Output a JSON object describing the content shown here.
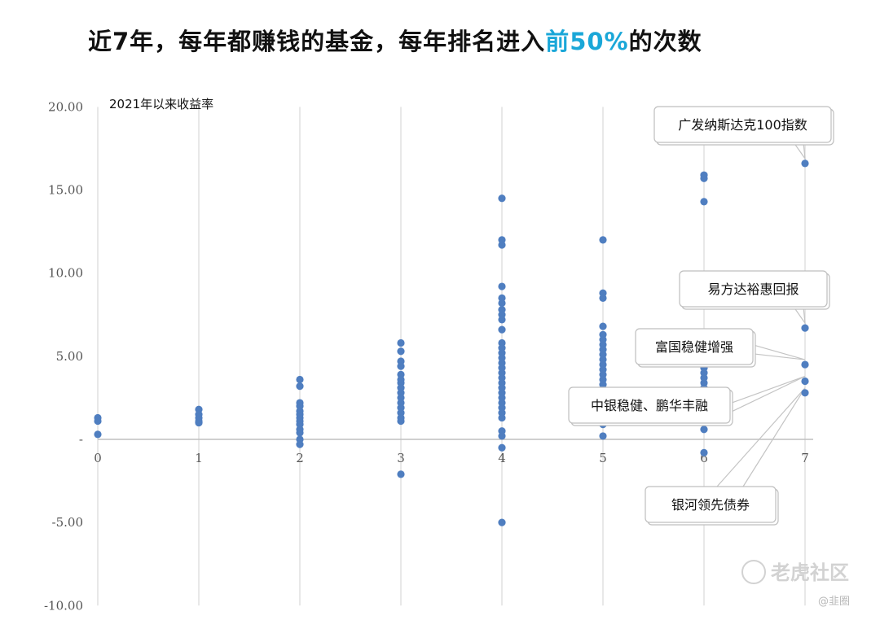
{
  "title": {
    "before": "近7年，每年都赚钱的基金，每年排名进入",
    "highlight": "前50%",
    "after": "的次数"
  },
  "colors": {
    "point": "#4f7ec0",
    "highlight": "#1aa7d8",
    "grid": "#d9d9d9"
  },
  "watermark": {
    "text": "老虎社区",
    "handle": "@韭圈",
    "icon": "tiger-logo-icon"
  },
  "chart_data": {
    "type": "scatter",
    "title": "",
    "xlabel": "",
    "ylabel": "2021年以来收益率",
    "xlim": [
      0,
      7
    ],
    "ylim": [
      -10,
      20
    ],
    "x_ticks": [
      0,
      1,
      2,
      3,
      4,
      5,
      6,
      7
    ],
    "y_ticks": [
      {
        "value": 20,
        "label": "20.00"
      },
      {
        "value": 15,
        "label": "15.00"
      },
      {
        "value": 10,
        "label": "10.00"
      },
      {
        "value": 5,
        "label": "5.00"
      },
      {
        "value": 0,
        "label": "-"
      },
      {
        "value": -5,
        "label": "-5.00"
      },
      {
        "value": -10,
        "label": "-10.00"
      }
    ],
    "grid": "vertical",
    "series": [
      {
        "name": "",
        "points": [
          [
            0,
            1.3
          ],
          [
            0,
            1.1
          ],
          [
            0,
            0.3
          ],
          [
            1,
            1.8
          ],
          [
            1,
            1.5
          ],
          [
            1,
            1.3
          ],
          [
            1,
            1.1
          ],
          [
            1,
            1.0
          ],
          [
            2,
            3.6
          ],
          [
            2,
            3.2
          ],
          [
            2,
            2.2
          ],
          [
            2,
            2.0
          ],
          [
            2,
            1.7
          ],
          [
            2,
            1.5
          ],
          [
            2,
            1.3
          ],
          [
            2,
            1.1
          ],
          [
            2,
            0.9
          ],
          [
            2,
            0.6
          ],
          [
            2,
            0.4
          ],
          [
            2,
            0.0
          ],
          [
            2,
            -0.3
          ],
          [
            3,
            5.8
          ],
          [
            3,
            5.3
          ],
          [
            3,
            4.7
          ],
          [
            3,
            4.4
          ],
          [
            3,
            3.9
          ],
          [
            3,
            3.6
          ],
          [
            3,
            3.4
          ],
          [
            3,
            3.1
          ],
          [
            3,
            2.8
          ],
          [
            3,
            2.5
          ],
          [
            3,
            2.2
          ],
          [
            3,
            1.9
          ],
          [
            3,
            1.6
          ],
          [
            3,
            1.3
          ],
          [
            3,
            1.1
          ],
          [
            3,
            -2.1
          ],
          [
            4,
            14.5
          ],
          [
            4,
            12.0
          ],
          [
            4,
            11.7
          ],
          [
            4,
            9.2
          ],
          [
            4,
            8.5
          ],
          [
            4,
            8.2
          ],
          [
            4,
            7.8
          ],
          [
            4,
            7.5
          ],
          [
            4,
            7.2
          ],
          [
            4,
            6.6
          ],
          [
            4,
            5.8
          ],
          [
            4,
            5.5
          ],
          [
            4,
            5.2
          ],
          [
            4,
            4.9
          ],
          [
            4,
            4.6
          ],
          [
            4,
            4.3
          ],
          [
            4,
            4.0
          ],
          [
            4,
            3.7
          ],
          [
            4,
            3.4
          ],
          [
            4,
            3.1
          ],
          [
            4,
            2.8
          ],
          [
            4,
            2.5
          ],
          [
            4,
            2.2
          ],
          [
            4,
            1.9
          ],
          [
            4,
            1.6
          ],
          [
            4,
            1.3
          ],
          [
            4,
            0.5
          ],
          [
            4,
            0.2
          ],
          [
            4,
            -0.5
          ],
          [
            4,
            -5.0
          ],
          [
            5,
            12.0
          ],
          [
            5,
            8.8
          ],
          [
            5,
            8.5
          ],
          [
            5,
            6.8
          ],
          [
            5,
            6.3
          ],
          [
            5,
            6.0
          ],
          [
            5,
            5.7
          ],
          [
            5,
            5.4
          ],
          [
            5,
            5.1
          ],
          [
            5,
            4.8
          ],
          [
            5,
            4.5
          ],
          [
            5,
            4.2
          ],
          [
            5,
            3.9
          ],
          [
            5,
            3.6
          ],
          [
            5,
            3.3
          ],
          [
            5,
            3.0
          ],
          [
            5,
            2.7
          ],
          [
            5,
            2.4
          ],
          [
            5,
            2.1
          ],
          [
            5,
            1.8
          ],
          [
            5,
            1.5
          ],
          [
            5,
            1.2
          ],
          [
            5,
            0.9
          ],
          [
            5,
            0.2
          ],
          [
            6,
            15.9
          ],
          [
            6,
            15.7
          ],
          [
            6,
            14.3
          ],
          [
            6,
            4.6
          ],
          [
            6,
            4.3
          ],
          [
            6,
            4.0
          ],
          [
            6,
            3.7
          ],
          [
            6,
            3.4
          ],
          [
            6,
            3.1
          ],
          [
            6,
            0.6
          ],
          [
            6,
            -0.8
          ],
          [
            7,
            16.6
          ],
          [
            7,
            6.7
          ],
          [
            7,
            4.5
          ],
          [
            7,
            3.5
          ],
          [
            7,
            2.8
          ]
        ]
      }
    ],
    "annotations": [
      {
        "label": "广发纳斯达克100指数",
        "x": 7,
        "y": 16.6
      },
      {
        "label": "易方达裕惠回报",
        "x": 7,
        "y": 6.7
      },
      {
        "label": "富国稳健增强",
        "x": 7,
        "y": 4.5
      },
      {
        "label": "中银稳健、鹏华丰融",
        "x": 7,
        "y": 3.5
      },
      {
        "label": "银河领先债券",
        "x": 7,
        "y": 2.8
      }
    ]
  }
}
